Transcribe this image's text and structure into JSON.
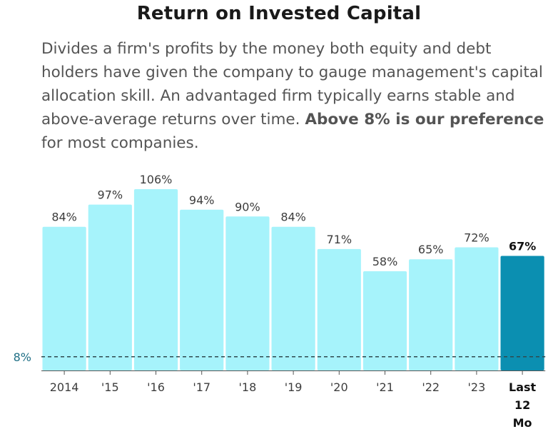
{
  "header": {
    "title": "Return on Invested Capital",
    "description_lead": "Divides a firm's profits by the money both equity and debt holders have given the company to gauge management's capital allocation skill. An advantaged firm typically earns stable and above-average returns over time.",
    "description_emphasis": "Above 8% is our preference",
    "description_tail": "for most companies."
  },
  "colors": {
    "bar": "#a6f3fb",
    "bar_highlight": "#0b8fb1",
    "value_label": "#3d3d3d",
    "reference_line": "#2f4a4f",
    "reference_label": "#1f6f85",
    "axis": "#555555"
  },
  "chart_data": {
    "type": "bar",
    "title": "Return on Invested Capital",
    "categories": [
      "2014",
      "'15",
      "'16",
      "'17",
      "'18",
      "'19",
      "'20",
      "'21",
      "'22",
      "'23",
      "Last 12 Mo"
    ],
    "category_lines": [
      [
        "2014"
      ],
      [
        "'15"
      ],
      [
        "'16"
      ],
      [
        "'17"
      ],
      [
        "'18"
      ],
      [
        "'19"
      ],
      [
        "'20"
      ],
      [
        "'21"
      ],
      [
        "'22"
      ],
      [
        "'23"
      ],
      [
        "Last",
        "12",
        "Mo"
      ]
    ],
    "values": [
      84,
      97,
      106,
      94,
      90,
      84,
      71,
      58,
      65,
      72,
      67
    ],
    "value_labels": [
      "84%",
      "97%",
      "106%",
      "94%",
      "90%",
      "84%",
      "71%",
      "58%",
      "65%",
      "72%",
      "67%"
    ],
    "highlight_index": 10,
    "reference_line": {
      "value": 8,
      "label": "8%",
      "style": "dashed"
    },
    "ylim": [
      0,
      114
    ],
    "xlabel": "",
    "ylabel": "",
    "grid": false,
    "legend": "none"
  }
}
